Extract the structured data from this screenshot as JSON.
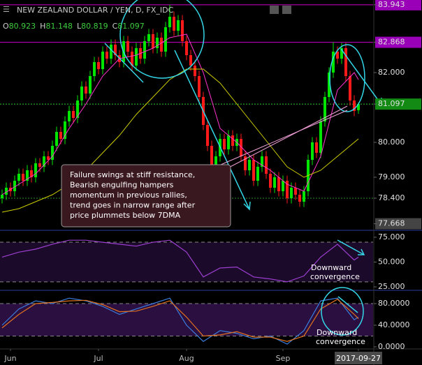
{
  "chart_data": [
    {
      "type": "candlestick",
      "title": "NEW ZEALAND DOLLAR / YEN, D, FX_IDC",
      "ohlc_labels": [
        "O",
        "H",
        "L",
        "C"
      ],
      "up_color": "#00e600",
      "down_color": "#ff1a1a",
      "open": [
        78.4,
        78.5,
        78.7,
        78.6,
        78.9,
        79.1,
        78.9,
        79.2,
        79.0,
        79.4,
        79.3,
        79.6,
        79.5,
        79.9,
        80.3,
        80.1,
        80.6,
        80.9,
        80.7,
        81.2,
        81.6,
        81.4,
        81.9,
        82.3,
        82.1,
        82.6,
        82.4,
        82.8,
        82.5,
        82.3,
        82.9,
        82.6,
        82.2,
        82.7,
        82.4,
        82.9,
        83.1,
        82.7,
        83.0,
        82.6,
        83.3,
        83.6,
        83.2,
        83.5,
        82.9,
        82.5,
        82.2,
        81.9,
        81.3,
        80.5,
        79.9,
        79.3,
        79.6,
        80.1,
        79.8,
        80.2,
        79.9,
        80.1,
        79.6,
        79.2,
        79.5,
        78.9,
        79.3,
        79.6,
        79.1,
        78.7,
        79.0,
        78.6,
        78.9,
        78.4,
        78.7,
        78.5,
        78.3,
        78.6,
        79.5,
        80.0,
        79.7,
        80.6,
        81.3,
        82.0,
        82.6,
        82.4,
        82.7,
        81.9,
        81.2,
        80.923
      ],
      "high": [
        78.65,
        78.85,
        78.85,
        79.05,
        79.25,
        79.25,
        79.35,
        79.35,
        79.55,
        79.55,
        79.75,
        79.75,
        80.05,
        80.45,
        80.45,
        80.75,
        81.05,
        81.05,
        81.35,
        81.75,
        81.75,
        82.05,
        82.45,
        82.45,
        82.75,
        82.75,
        82.95,
        82.95,
        82.65,
        83.05,
        83.05,
        82.75,
        82.85,
        82.85,
        83.05,
        83.25,
        83.25,
        83.15,
        83.15,
        83.45,
        83.943,
        83.75,
        83.65,
        83.65,
        83.05,
        82.65,
        82.35,
        82.05,
        81.45,
        80.65,
        80.05,
        79.75,
        80.25,
        80.25,
        80.35,
        80.35,
        80.25,
        80.25,
        79.75,
        79.65,
        79.65,
        79.45,
        79.75,
        79.75,
        79.25,
        79.15,
        79.15,
        79.05,
        79.05,
        78.85,
        78.85,
        78.65,
        78.75,
        79.65,
        80.15,
        80.15,
        80.75,
        81.45,
        82.15,
        82.868,
        82.75,
        82.85,
        82.85,
        82.05,
        81.35,
        81.148
      ],
      "low": [
        78.25,
        78.35,
        78.45,
        78.45,
        78.75,
        78.75,
        78.75,
        78.85,
        78.85,
        79.15,
        79.15,
        79.35,
        79.35,
        79.75,
        79.95,
        79.95,
        80.45,
        80.55,
        80.55,
        81.05,
        81.25,
        81.25,
        81.75,
        81.95,
        81.95,
        82.25,
        82.25,
        82.35,
        82.15,
        82.15,
        82.45,
        82.05,
        82.05,
        82.25,
        82.25,
        82.75,
        82.55,
        82.55,
        82.45,
        82.45,
        83.15,
        83.05,
        83.05,
        82.75,
        82.35,
        82.05,
        81.75,
        81.15,
        80.35,
        79.75,
        79.15,
        79.15,
        79.45,
        79.65,
        79.65,
        79.75,
        79.75,
        79.45,
        79.05,
        79.05,
        78.75,
        78.75,
        79.15,
        78.95,
        78.55,
        78.55,
        78.45,
        78.45,
        78.25,
        78.25,
        78.35,
        78.15,
        78.15,
        78.45,
        79.35,
        79.55,
        79.55,
        80.45,
        81.15,
        81.85,
        82.25,
        82.25,
        81.75,
        81.05,
        80.75,
        80.819
      ],
      "close": [
        78.5,
        78.7,
        78.6,
        78.9,
        79.1,
        78.9,
        79.2,
        79.0,
        79.4,
        79.3,
        79.6,
        79.5,
        79.9,
        80.3,
        80.1,
        80.6,
        80.9,
        80.7,
        81.2,
        81.6,
        81.4,
        81.9,
        82.3,
        82.1,
        82.6,
        82.4,
        82.8,
        82.5,
        82.3,
        82.9,
        82.6,
        82.2,
        82.7,
        82.4,
        82.9,
        83.1,
        82.7,
        83.0,
        82.6,
        83.3,
        83.6,
        83.2,
        83.5,
        82.9,
        82.5,
        82.2,
        81.9,
        81.3,
        80.5,
        79.9,
        79.3,
        79.6,
        80.1,
        79.8,
        80.2,
        79.9,
        80.1,
        79.6,
        79.2,
        79.5,
        78.9,
        79.3,
        79.6,
        79.1,
        78.7,
        79.0,
        78.6,
        78.9,
        78.4,
        78.7,
        78.5,
        78.3,
        78.6,
        79.5,
        80.0,
        79.7,
        80.6,
        81.3,
        82.0,
        82.6,
        82.4,
        82.7,
        81.9,
        81.2,
        80.9,
        81.097
      ],
      "overlays": [
        {
          "color": "#ff33cc",
          "x": [
            0,
            4,
            8,
            12,
            16,
            20,
            24,
            28,
            32,
            36,
            40,
            44,
            48,
            52,
            56,
            60,
            64,
            68,
            72,
            76,
            80,
            84,
            85
          ],
          "values": [
            78.5,
            78.8,
            79.1,
            79.6,
            80.4,
            81.1,
            81.9,
            82.4,
            82.5,
            82.7,
            83.0,
            83.1,
            82.0,
            80.4,
            80.0,
            79.5,
            79.2,
            78.8,
            78.6,
            79.6,
            81.5,
            82.0,
            81.8
          ]
        },
        {
          "color": "#cccc00",
          "x": [
            0,
            4,
            8,
            12,
            16,
            20,
            24,
            28,
            32,
            36,
            40,
            44,
            48,
            52,
            56,
            60,
            64,
            68,
            72,
            76,
            80,
            84,
            85
          ],
          "values": [
            78.0,
            78.1,
            78.3,
            78.5,
            78.8,
            79.2,
            79.7,
            80.2,
            80.8,
            81.3,
            81.8,
            82.1,
            82.1,
            81.7,
            81.1,
            80.5,
            79.9,
            79.3,
            79.0,
            79.2,
            79.6,
            80.0,
            80.1
          ]
        }
      ],
      "xlim": [
        -0.5,
        88.5
      ],
      "xticks": [
        {
          "value": 2,
          "label": "Jun"
        },
        {
          "value": 23,
          "label": "Jul"
        },
        {
          "value": 44,
          "label": "Aug"
        },
        {
          "value": 67,
          "label": "Sep"
        },
        {
          "value": 85,
          "label": "2017-09-27"
        }
      ],
      "ylim": [
        77.48,
        84.08
      ],
      "yticks": [
        83.943,
        82.868,
        {
          "value": 82,
          "label": "82.000"
        },
        81.097,
        {
          "value": 80,
          "label": "80.000"
        },
        {
          "value": 79,
          "label": "79.000"
        },
        {
          "value": 78.4,
          "label": "78.400"
        },
        77.668
      ],
      "ytick_box_colors": [
        "#9a00b8",
        "#9a00b8",
        null,
        "#138a13",
        null,
        null,
        null,
        "#444444"
      ],
      "ytick_line_colors": [
        "#cc00cc",
        "#cc00cc",
        null,
        "#33cc33",
        null,
        null,
        "#2f8f2f",
        null
      ],
      "annotation": [
        "Failure swings at stiff resistance,",
        "Bearish engulfing hampers",
        "momentum in previous rallies,",
        "trend goes in narrow range after",
        "price plummets below 7DMA"
      ]
    },
    {
      "type": "line",
      "ylim": [
        21.5,
        82
      ],
      "yticks": [
        {
          "value": 75,
          "label": "75.000"
        },
        {
          "value": 50,
          "label": "50.000"
        },
        {
          "value": 25,
          "label": "25.000"
        }
      ],
      "levels": [
        70,
        30
      ],
      "band_color": "#1c0a2a",
      "series": [
        {
          "color": "#9b3fd0",
          "x": [
            0,
            4,
            8,
            12,
            16,
            20,
            24,
            28,
            32,
            36,
            40,
            44,
            48,
            52,
            56,
            60,
            64,
            68,
            72,
            76,
            80,
            84,
            85
          ],
          "values": [
            55,
            60,
            63,
            68,
            72,
            72,
            70,
            68,
            66,
            70,
            72,
            60,
            35,
            44,
            45,
            35,
            33,
            30,
            36,
            55,
            68,
            52,
            55
          ]
        }
      ],
      "annotation": [
        "Downward",
        "convergence"
      ]
    },
    {
      "type": "line",
      "ylim": [
        -3.9,
        104.5
      ],
      "yticks": [
        {
          "value": 80,
          "label": "80.0000"
        },
        {
          "value": 40,
          "label": "40.0000"
        },
        {
          "value": 0,
          "label": "0.0000"
        }
      ],
      "levels": [
        80,
        20
      ],
      "band_color": "#2a0f40",
      "series": [
        {
          "color": "#3b7ddd",
          "x": [
            0,
            4,
            8,
            12,
            16,
            20,
            24,
            28,
            32,
            36,
            40,
            44,
            48,
            52,
            56,
            60,
            64,
            68,
            72,
            76,
            80,
            84,
            85
          ],
          "values": [
            40,
            70,
            85,
            80,
            90,
            85,
            75,
            60,
            70,
            80,
            90,
            40,
            10,
            30,
            25,
            15,
            20,
            5,
            30,
            85,
            90,
            50,
            55
          ]
        },
        {
          "color": "#e07020",
          "x": [
            0,
            4,
            8,
            12,
            16,
            20,
            24,
            28,
            32,
            36,
            40,
            44,
            48,
            52,
            56,
            60,
            64,
            68,
            72,
            76,
            80,
            84,
            85
          ],
          "values": [
            35,
            60,
            80,
            82,
            85,
            86,
            78,
            65,
            66,
            75,
            85,
            55,
            20,
            22,
            28,
            18,
            18,
            10,
            20,
            70,
            88,
            60,
            52
          ]
        }
      ],
      "annotation": [
        "Downward",
        "convergence"
      ]
    }
  ]
}
